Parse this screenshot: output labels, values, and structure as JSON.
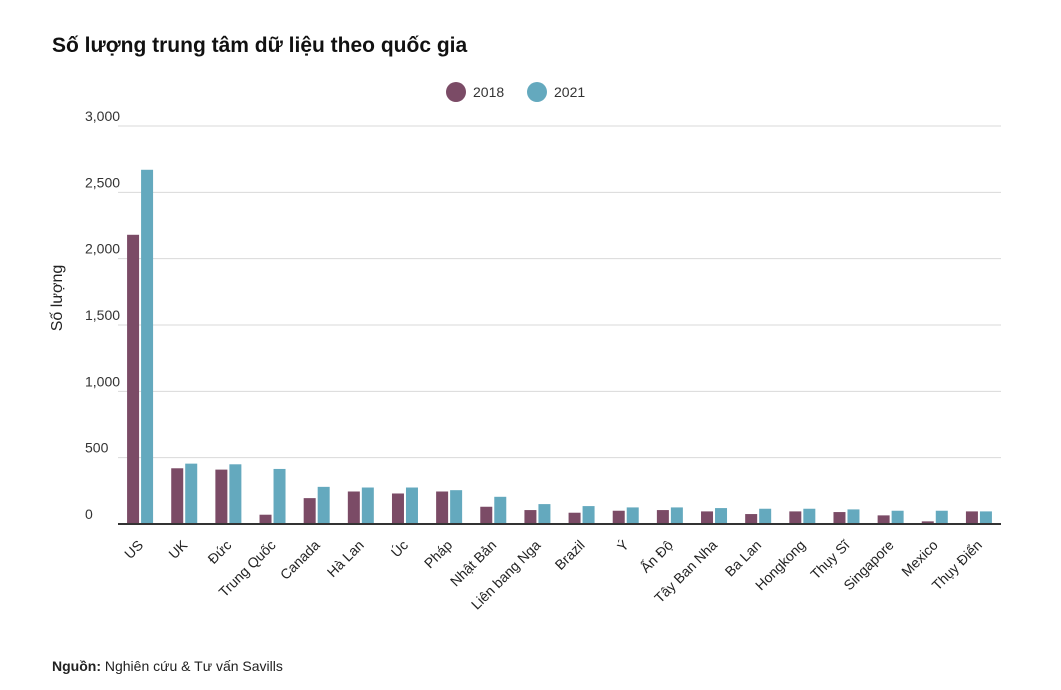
{
  "title": "Số lượng trung tâm dữ liệu theo quốc gia",
  "source": {
    "label": "Nguồn:",
    "text": " Nghiên cứu & Tư vấn Savills"
  },
  "colors": {
    "s2018": "#7b4b66",
    "s2021": "#64a9be",
    "grid": "#d9d9d9",
    "axis": "#333333"
  },
  "chart_data": {
    "type": "bar",
    "title": "Số lượng trung tâm dữ liệu theo quốc gia",
    "ylabel": "Số lượng",
    "xlabel": "",
    "ylim": [
      0,
      3000
    ],
    "yticks": [
      0,
      500,
      1000,
      1500,
      2000,
      2500,
      3000
    ],
    "ytick_labels": [
      "0",
      "500",
      "1,000",
      "1,500",
      "2,000",
      "2,500",
      "3,000"
    ],
    "grid": true,
    "legend": "top-center",
    "categories": [
      "US",
      "UK",
      "Đức",
      "Trung Quốc",
      "Canada",
      "Hà Lan",
      "Úc",
      "Pháp",
      "Nhật Bản",
      "Liên bang Nga",
      "Brazil",
      "Ý",
      "Ấn Độ",
      "Tây Ban Nha",
      "Ba Lan",
      "Hongkong",
      "Thụy Sĩ",
      "Singapore",
      "Mexico",
      "Thụy Điển"
    ],
    "series": [
      {
        "name": "2018",
        "values": [
          2180,
          420,
          410,
          70,
          195,
          245,
          230,
          245,
          130,
          105,
          85,
          100,
          105,
          95,
          75,
          95,
          90,
          65,
          20,
          95
        ]
      },
      {
        "name": "2021",
        "values": [
          2670,
          455,
          450,
          415,
          280,
          275,
          275,
          255,
          205,
          150,
          135,
          125,
          125,
          120,
          115,
          115,
          110,
          100,
          100,
          95
        ]
      }
    ]
  }
}
